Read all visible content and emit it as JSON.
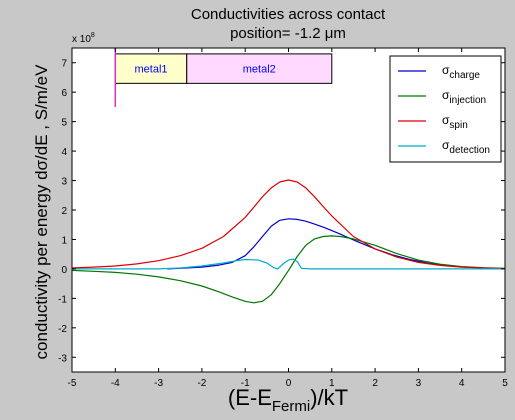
{
  "chart_data": {
    "type": "line",
    "title_line1": "Conductivities across contact",
    "title_line2_prefix": "position= ",
    "title_line2_value": "-1.2",
    "title_line2_unit": " μm",
    "xlabel_main": "(E-E",
    "xlabel_sub": "Fermi",
    "xlabel_tail": ")/kT",
    "ylabel": "conductivity per energy dσ/dE , S/m/eV",
    "y_multiplier_text": "x 10",
    "y_multiplier_exp": "8",
    "xlim": [
      -5,
      5
    ],
    "ylim": [
      -3.5,
      7.5
    ],
    "xticks": [
      "-5",
      "-4",
      "-3",
      "-2",
      "-1",
      "0",
      "1",
      "2",
      "3",
      "4",
      "5"
    ],
    "yticks": [
      "-3",
      "-2",
      "-1",
      "0",
      "1",
      "2",
      "3",
      "4",
      "5",
      "6",
      "7"
    ],
    "legend_position": "top-right",
    "regions": [
      {
        "label": "metal1",
        "x0": -4,
        "x1": -2.35,
        "color": "#ffffcc",
        "text_color": "#0000ff"
      },
      {
        "label": "metal2",
        "x0": -2.35,
        "x1": 1.0,
        "color": "#ffd9ff",
        "text_color": "#0000ff"
      }
    ],
    "region_band_y": [
      6.3,
      7.3
    ],
    "marker": {
      "x": -4,
      "y0": 5.5,
      "y1": 7.5,
      "color": "#cc33cc"
    },
    "series": [
      {
        "name_base": "σ",
        "name_sub": "charge",
        "color": "#0000cc",
        "x": [
          -2.8,
          -2.5,
          -2.0,
          -1.6,
          -1.3,
          -1.0,
          -0.8,
          -0.6,
          -0.4,
          -0.2,
          0.0,
          0.2,
          0.4,
          0.6,
          0.8,
          1.0,
          1.2,
          1.4,
          1.6,
          1.8,
          2.0,
          2.4,
          2.8,
          3.2,
          3.6,
          4.0,
          4.5,
          5.0
        ],
        "values": [
          0.0,
          0.02,
          0.06,
          0.13,
          0.22,
          0.45,
          0.75,
          1.1,
          1.45,
          1.65,
          1.7,
          1.68,
          1.62,
          1.52,
          1.42,
          1.3,
          1.18,
          1.05,
          0.92,
          0.8,
          0.68,
          0.48,
          0.32,
          0.2,
          0.12,
          0.07,
          0.03,
          0.01
        ]
      },
      {
        "name_base": "σ",
        "name_sub": "injection",
        "color": "#007700",
        "x": [
          -5.0,
          -4.5,
          -4.0,
          -3.5,
          -3.0,
          -2.5,
          -2.0,
          -1.6,
          -1.3,
          -1.0,
          -0.8,
          -0.6,
          -0.4,
          -0.2,
          0.0,
          0.2,
          0.4,
          0.6,
          0.8,
          1.0,
          1.2,
          1.5,
          2.0,
          2.5,
          3.0,
          3.5,
          4.0,
          4.5,
          5.0
        ],
        "values": [
          -0.05,
          -0.08,
          -0.12,
          -0.18,
          -0.27,
          -0.4,
          -0.58,
          -0.78,
          -0.95,
          -1.1,
          -1.15,
          -1.1,
          -0.88,
          -0.5,
          -0.05,
          0.42,
          0.8,
          1.02,
          1.1,
          1.12,
          1.1,
          1.02,
          0.8,
          0.52,
          0.3,
          0.16,
          0.08,
          0.04,
          0.02
        ]
      },
      {
        "name_base": "σ",
        "name_sub": "spin",
        "color": "#dd0000",
        "x": [
          -5.0,
          -4.5,
          -4.0,
          -3.5,
          -3.0,
          -2.5,
          -2.0,
          -1.5,
          -1.0,
          -0.8,
          -0.6,
          -0.4,
          -0.2,
          0.0,
          0.2,
          0.4,
          0.6,
          0.8,
          1.0,
          1.5,
          2.0,
          2.5,
          3.0,
          3.5,
          4.0,
          4.5,
          5.0
        ],
        "values": [
          0.03,
          0.06,
          0.1,
          0.17,
          0.28,
          0.45,
          0.7,
          1.1,
          1.75,
          2.1,
          2.45,
          2.75,
          2.95,
          3.02,
          2.95,
          2.75,
          2.45,
          2.12,
          1.8,
          1.1,
          0.68,
          0.4,
          0.22,
          0.12,
          0.06,
          0.03,
          0.01
        ]
      },
      {
        "name_base": "σ",
        "name_sub": "detection",
        "color": "#00aacc",
        "x": [
          -5.0,
          -4.0,
          -3.0,
          -2.5,
          -2.0,
          -1.5,
          -1.2,
          -1.0,
          -0.7,
          -0.5,
          -0.35,
          -0.25,
          -0.1,
          0.0,
          0.1,
          0.2,
          0.3,
          0.5,
          1.0,
          2.0,
          3.0,
          4.0,
          5.0
        ],
        "values": [
          0.0,
          0.0,
          0.0,
          0.03,
          0.1,
          0.2,
          0.28,
          0.32,
          0.3,
          0.2,
          0.05,
          0.0,
          0.2,
          0.3,
          0.33,
          0.25,
          0.02,
          0.0,
          0.0,
          0.0,
          0.0,
          0.0,
          0.0
        ]
      }
    ]
  }
}
